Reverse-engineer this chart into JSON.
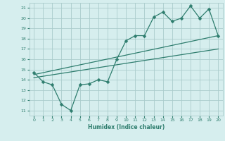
{
  "title": "",
  "xlabel": "Humidex (Indice chaleur)",
  "ylabel": "",
  "bg_color": "#d6eeee",
  "grid_color": "#aacccc",
  "line_color": "#2e7d6e",
  "xlim": [
    -0.5,
    20.5
  ],
  "ylim": [
    10.5,
    21.5
  ],
  "xticks": [
    0,
    1,
    2,
    3,
    4,
    5,
    6,
    7,
    8,
    9,
    10,
    11,
    12,
    13,
    14,
    15,
    16,
    17,
    18,
    19,
    20
  ],
  "yticks": [
    11,
    12,
    13,
    14,
    15,
    16,
    17,
    18,
    19,
    20,
    21
  ],
  "line1": {
    "x": [
      0,
      1,
      2,
      3,
      4,
      5,
      6,
      7,
      8,
      9,
      10,
      11,
      12,
      13,
      14,
      15,
      16,
      17,
      18,
      19,
      20
    ],
    "y": [
      14.7,
      13.8,
      13.5,
      11.6,
      11.0,
      13.5,
      13.6,
      14.0,
      13.8,
      16.0,
      17.8,
      18.3,
      18.3,
      20.1,
      20.6,
      19.7,
      20.0,
      21.2,
      20.0,
      20.9,
      18.3
    ]
  },
  "line2": {
    "x": [
      0,
      20
    ],
    "y": [
      14.5,
      18.3
    ]
  },
  "line3": {
    "x": [
      0,
      20
    ],
    "y": [
      14.2,
      17.0
    ]
  }
}
